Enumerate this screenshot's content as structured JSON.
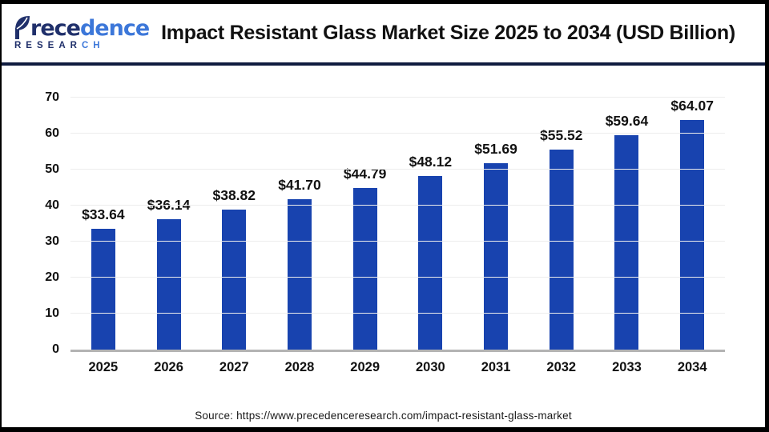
{
  "brand": {
    "word_part1": "rece",
    "word_part2": "dence",
    "sub_part1": "RESEAR",
    "sub_part2": "CH",
    "full_name": "Precedence Research"
  },
  "header": {
    "title": "Impact Resistant Glass Market Size 2025 to 2034 (USD Billion)"
  },
  "chart_data": {
    "type": "bar",
    "title": "Impact Resistant Glass Market Size 2025 to 2034 (USD Billion)",
    "categories": [
      "2025",
      "2026",
      "2027",
      "2028",
      "2029",
      "2030",
      "2031",
      "2032",
      "2033",
      "2034"
    ],
    "values": [
      33.64,
      36.14,
      38.82,
      41.7,
      44.79,
      48.12,
      51.69,
      55.52,
      59.64,
      64.07
    ],
    "value_labels": [
      "$33.64",
      "$36.14",
      "$38.82",
      "$41.70",
      "$44.79",
      "$48.12",
      "$51.69",
      "$55.52",
      "$59.64",
      "$64.07"
    ],
    "xlabel": "",
    "ylabel": "",
    "ylim": [
      0,
      70
    ],
    "yticks": [
      0,
      10,
      20,
      30,
      40,
      50,
      60,
      70
    ],
    "grid": true,
    "legend_position": "none",
    "bar_color": "#1843af"
  },
  "footer": {
    "source": "Source: https://www.precedenceresearch.com/impact-resistant-glass-market"
  },
  "colors": {
    "bar": "#1843af",
    "divider_navy": "#101c3f",
    "logo_navy": "#20306b",
    "logo_blue": "#3c77d9",
    "gridline": "#ededed",
    "axis_line": "#b3b3b3",
    "frame": "#000000",
    "background": "#ffffff"
  }
}
